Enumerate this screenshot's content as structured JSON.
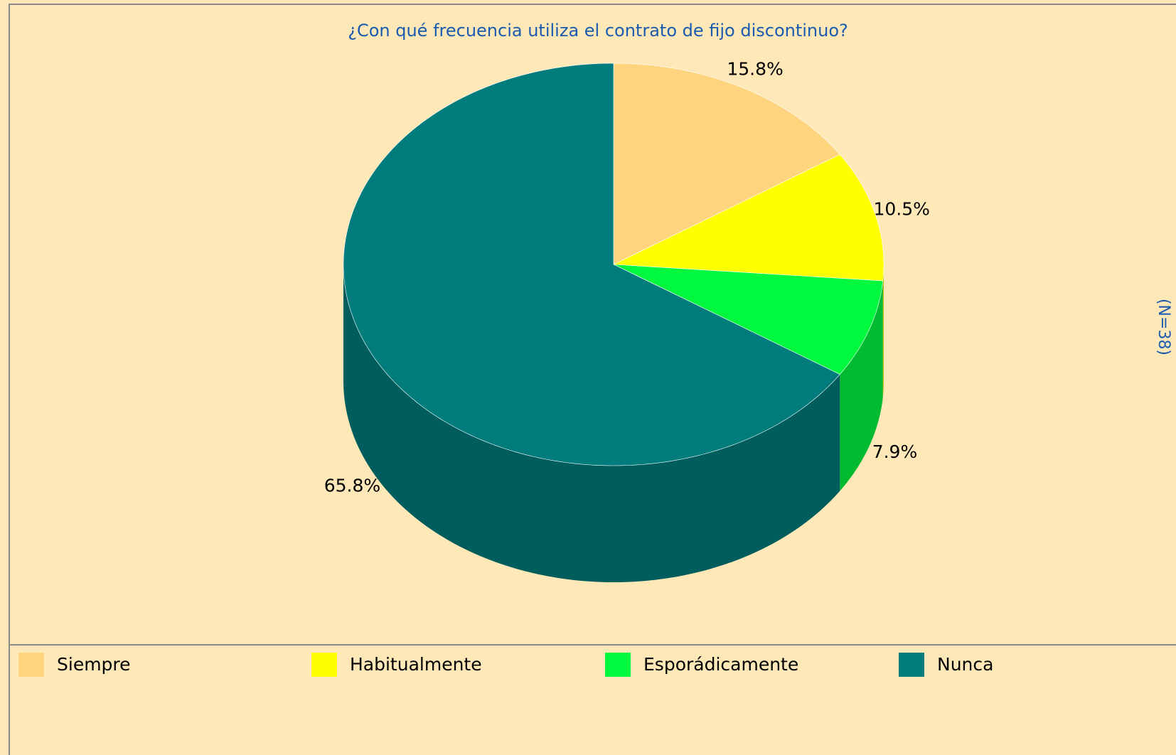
{
  "chart_data": {
    "type": "pie",
    "title": "¿Con qué frecuencia utiliza el contrato de fijo discontinuo?",
    "side_note": "(N=38)",
    "categories": [
      "Siempre",
      "Habitualmente",
      "Esporádicamente",
      "Nunca"
    ],
    "values": [
      15.8,
      10.5,
      7.9,
      65.8
    ],
    "value_labels": [
      "15.8%",
      "10.5%",
      "7.9%",
      "65.8%"
    ],
    "colors": [
      "#ffd47f",
      "#ffff00",
      "#00f83e",
      "#007c7c"
    ],
    "legend": "bottom"
  }
}
